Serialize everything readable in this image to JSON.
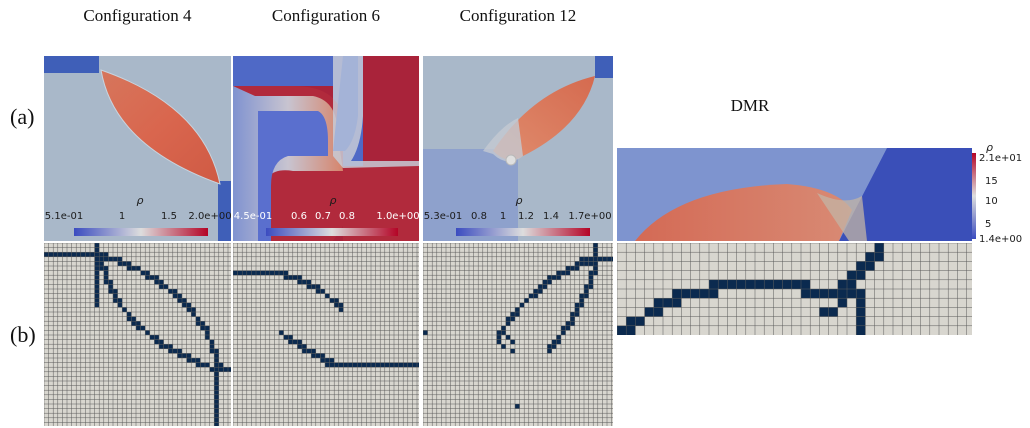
{
  "columns": [
    {
      "title": "Configuration 4"
    },
    {
      "title": "Configuration 6"
    },
    {
      "title": "Configuration 12"
    }
  ],
  "dmr": {
    "title": "DMR"
  },
  "rows": [
    {
      "label": "(a)"
    },
    {
      "label": "(b)"
    }
  ],
  "colorbars": {
    "config4": {
      "title": "ρ",
      "ticks": [
        "5.1e-01",
        "1",
        "1.5",
        "2.0e+00"
      ]
    },
    "config6": {
      "title": "ρ",
      "ticks": [
        "4.5e-01",
        "0.6",
        "0.7",
        "0.8",
        "1.0e+00"
      ]
    },
    "config12": {
      "title": "ρ",
      "ticks": [
        "5.3e-01",
        "0.8",
        "1",
        "1.2",
        "1.4",
        "1.7e+00"
      ]
    },
    "dmr": {
      "title": "ρ",
      "ticks": [
        "2.1e+01",
        "15",
        "10",
        "5",
        "1.4e+00"
      ]
    }
  },
  "colors": {
    "background": "#a9b8c9",
    "low": "#3b4cc0",
    "high": "#b40426",
    "mid": "#dddddd",
    "flagged_cell": "#0b2a4f",
    "grid_cell": "#d8d6cf",
    "grid_line": "#5a5a5a"
  }
}
